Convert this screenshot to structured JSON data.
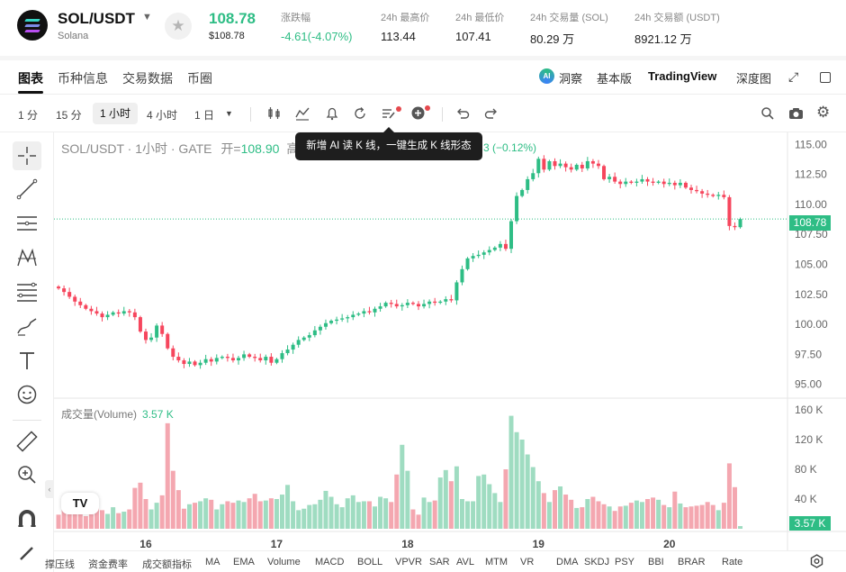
{
  "header": {
    "pair": "SOL/USDT",
    "subtitle": "Solana",
    "last_price": "108.78",
    "last_price_usd": "$108.78",
    "stats": [
      {
        "label": "涨跌幅",
        "value": "-4.61(-4.07%)",
        "color": "green"
      },
      {
        "label": "24h 最高价",
        "value": "113.44"
      },
      {
        "label": "24h 最低价",
        "value": "107.41"
      },
      {
        "label": "24h 交易量 (SOL)",
        "value": "80.29 万"
      },
      {
        "label": "24h 交易额 (USDT)",
        "value": "8921.12 万"
      }
    ]
  },
  "tabs": [
    "图表",
    "币种信息",
    "交易数据",
    "币圈"
  ],
  "tabs_right": {
    "dongcha": "洞察",
    "basic": "基本版",
    "tradingview": "TradingView",
    "depth": "深度图"
  },
  "timeframes": {
    "m1": "1 分",
    "m15": "15 分",
    "h1": "1 小时",
    "h4": "4 小时",
    "d1": "1 日"
  },
  "legend": {
    "symbol": "SOL/USDT · 1小时 · GATE",
    "open_label": "开=",
    "open_value": "108.90",
    "high_label": "高",
    "change_tail": "3 (−0.12%)"
  },
  "tooltip": "新增 AI 读 K 线，一键生成 K 线形态",
  "volume_legend": {
    "label": "成交量(Volume)",
    "value": "3.57 K"
  },
  "price_tag": "108.78",
  "volume_tag": "3.57 K",
  "tv_logo": "TV",
  "indicators": [
    "撑压线",
    "资金费率",
    "成交额指标",
    "MA",
    "EMA",
    "Volume",
    "MACD",
    "BOLL",
    "VPVR",
    "SAR",
    "AVL",
    "MTM",
    "VR",
    "DMA",
    "SKDJ",
    "PSY",
    "BBI",
    "BRAR",
    "Rate"
  ],
  "colors": {
    "up": "#2ebd85",
    "down": "#f6465d"
  },
  "chart_data": {
    "type": "candlestick",
    "interval": "1h",
    "price_axis": {
      "ticks": [
        115.0,
        112.5,
        110.0,
        107.5,
        105.0,
        102.5,
        100.0,
        97.5,
        95.0
      ],
      "range": [
        94.0,
        116.0
      ]
    },
    "volume_axis": {
      "ticks": [
        "160 K",
        "120 K",
        "80 K",
        "40 K"
      ],
      "max": 160000
    },
    "x_ticks": [
      {
        "label": "16",
        "index": 16
      },
      {
        "label": "17",
        "index": 40
      },
      {
        "label": "18",
        "index": 64
      },
      {
        "label": "19",
        "index": 88
      },
      {
        "label": "20",
        "index": 112
      }
    ],
    "last_price": 108.78,
    "closes": [
      103.0,
      102.7,
      102.3,
      101.9,
      101.6,
      101.3,
      101.1,
      100.9,
      100.6,
      100.8,
      101.0,
      100.9,
      101.1,
      101.0,
      100.6,
      99.4,
      98.7,
      98.9,
      99.9,
      99.2,
      98.0,
      97.3,
      97.0,
      96.7,
      96.9,
      96.6,
      96.8,
      97.1,
      96.9,
      97.2,
      97.3,
      97.2,
      97.0,
      97.2,
      97.5,
      97.3,
      97.2,
      97.0,
      97.3,
      96.8,
      97.1,
      97.6,
      97.9,
      98.3,
      98.7,
      98.9,
      99.1,
      99.5,
      99.8,
      100.1,
      100.3,
      100.4,
      100.5,
      100.6,
      100.8,
      100.9,
      101.1,
      101.0,
      101.3,
      101.5,
      101.8,
      101.7,
      101.5,
      101.6,
      101.8,
      101.7,
      101.5,
      101.7,
      101.9,
      101.8,
      101.9,
      102.1,
      102.0,
      103.5,
      104.6,
      105.5,
      105.7,
      105.8,
      106.0,
      106.2,
      106.4,
      106.7,
      106.3,
      108.6,
      110.7,
      111.2,
      112.1,
      112.6,
      113.8,
      112.9,
      113.6,
      113.2,
      113.4,
      113.1,
      112.9,
      113.3,
      113.0,
      113.6,
      113.4,
      113.2,
      112.1,
      112.3,
      111.9,
      111.7,
      111.9,
      111.8,
      111.9,
      112.1,
      111.9,
      111.8,
      111.9,
      111.7,
      111.8,
      111.6,
      111.8,
      111.4,
      111.2,
      111.1,
      110.9,
      110.8,
      110.7,
      110.8,
      110.6,
      108.2,
      108.1,
      108.78
    ],
    "volumes": [
      19000,
      32000,
      27000,
      36000,
      22000,
      17000,
      24000,
      30000,
      25000,
      20000,
      29000,
      21000,
      23000,
      26000,
      55000,
      62000,
      40000,
      26000,
      35000,
      45000,
      142000,
      78000,
      52000,
      27000,
      33000,
      35000,
      37000,
      41000,
      39000,
      26000,
      33000,
      37000,
      35000,
      38000,
      36000,
      41000,
      47000,
      37000,
      38000,
      41000,
      40000,
      46000,
      59000,
      37000,
      25000,
      27000,
      32000,
      33000,
      39000,
      51000,
      43000,
      33000,
      29000,
      41000,
      45000,
      36000,
      37000,
      37000,
      30000,
      43000,
      41000,
      36000,
      73000,
      113000,
      78000,
      26000,
      19000,
      42000,
      36000,
      38000,
      69000,
      79000,
      64000,
      84000,
      40000,
      37000,
      37000,
      71000,
      73000,
      60000,
      48000,
      36000,
      80000,
      152000,
      130000,
      120000,
      100000,
      83000,
      64000,
      48000,
      36000,
      52000,
      57000,
      46000,
      39000,
      28000,
      29000,
      40000,
      43000,
      37000,
      33000,
      30000,
      24000,
      30000,
      31000,
      35000,
      38000,
      36000,
      40000,
      42000,
      39000,
      32000,
      29000,
      50000,
      34000,
      29000,
      30000,
      31000,
      32000,
      36000,
      32000,
      25000,
      35000,
      88000,
      56000,
      3570
    ]
  }
}
